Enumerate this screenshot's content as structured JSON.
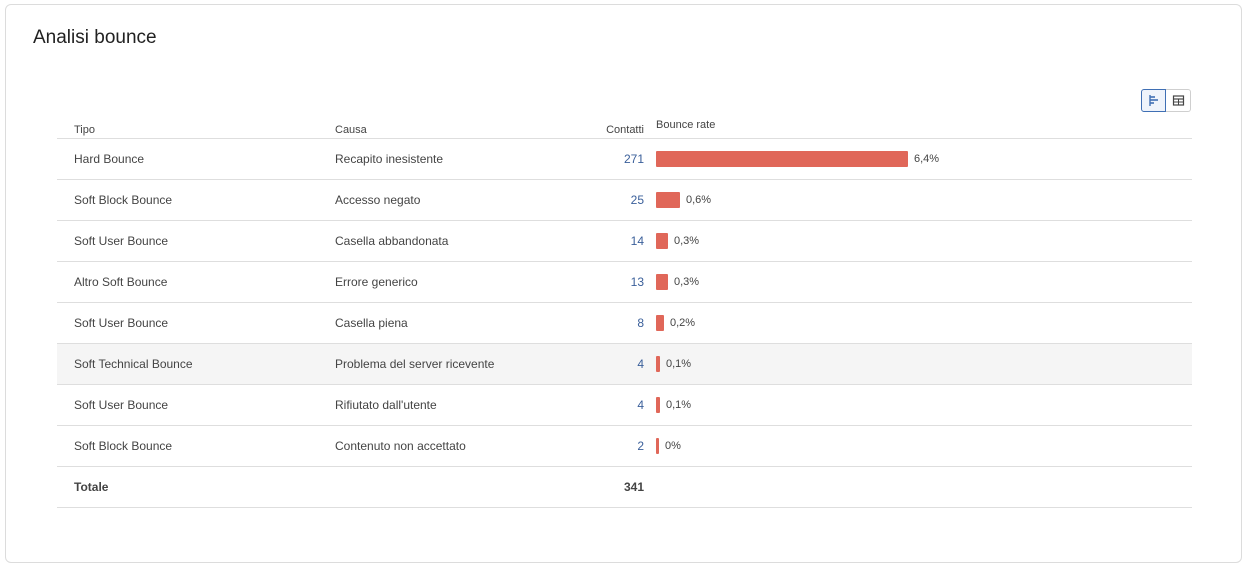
{
  "title": "Analisi bounce",
  "view_toggle": {
    "options": [
      {
        "icon": "bar-chart-icon",
        "active": true
      },
      {
        "icon": "table-grid-icon",
        "active": false
      }
    ]
  },
  "colors": {
    "bar": "#e06759",
    "accent": "#3f6fb4",
    "link": "#3a5f9a"
  },
  "table": {
    "headers": {
      "tipo": "Tipo",
      "causa": "Causa",
      "contatti": "Contatti",
      "rate": "Bounce rate"
    },
    "rows": [
      {
        "tipo": "Hard Bounce",
        "causa": "Recapito inesistente",
        "contatti": "271",
        "rate_label": "6,4%",
        "rate": 6.4
      },
      {
        "tipo": "Soft Block Bounce",
        "causa": "Accesso negato",
        "contatti": "25",
        "rate_label": "0,6%",
        "rate": 0.6
      },
      {
        "tipo": "Soft User Bounce",
        "causa": "Casella abbandonata",
        "contatti": "14",
        "rate_label": "0,3%",
        "rate": 0.3
      },
      {
        "tipo": "Altro Soft Bounce",
        "causa": "Errore generico",
        "contatti": "13",
        "rate_label": "0,3%",
        "rate": 0.3
      },
      {
        "tipo": "Soft User Bounce",
        "causa": "Casella piena",
        "contatti": "8",
        "rate_label": "0,2%",
        "rate": 0.2
      },
      {
        "tipo": "Soft Technical Bounce",
        "causa": "Problema del server ricevente",
        "contatti": "4",
        "rate_label": "0,1%",
        "rate": 0.1
      },
      {
        "tipo": "Soft User Bounce",
        "causa": "Rifiutato dall'utente",
        "contatti": "4",
        "rate_label": "0,1%",
        "rate": 0.1
      },
      {
        "tipo": "Soft Block Bounce",
        "causa": "Contenuto non accettato",
        "contatti": "2",
        "rate_label": "0%",
        "rate": 0.05
      }
    ],
    "total": {
      "label": "Totale",
      "contatti": "341"
    }
  }
}
